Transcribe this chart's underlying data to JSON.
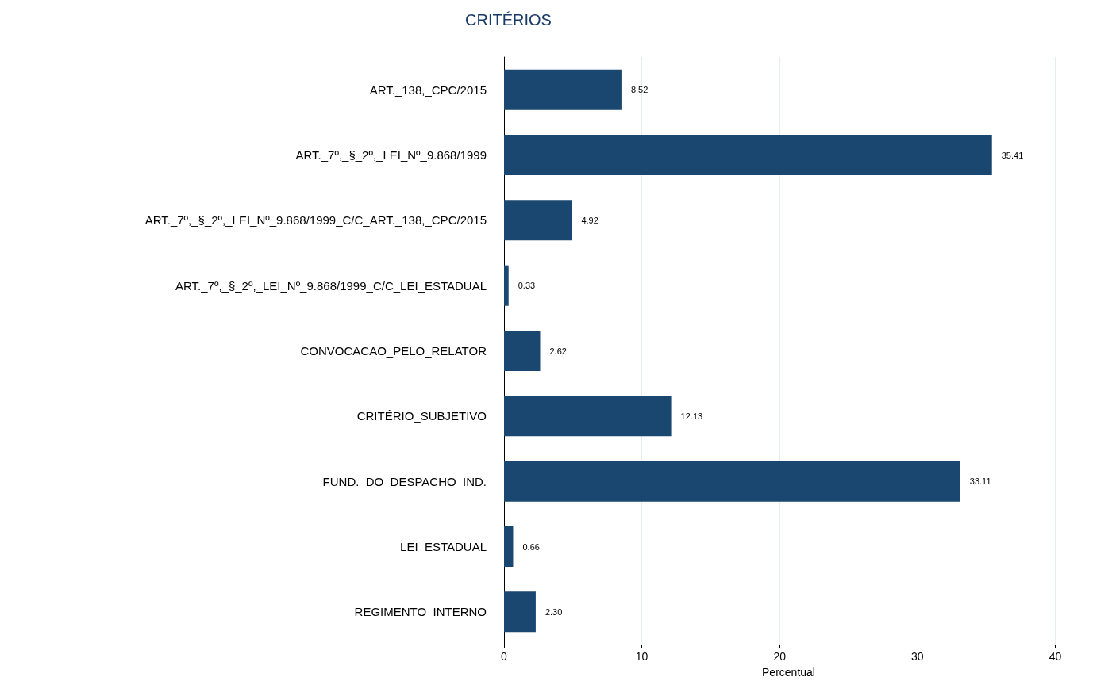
{
  "chart_data": {
    "type": "bar",
    "orientation": "horizontal",
    "title": "CRITÉRIOS",
    "xlabel": "Percentual",
    "categories": [
      "ART._138,_CPC/2015",
      "ART._7º,_§_2º,_LEI_Nº_9.868/1999",
      "ART._7º,_§_2º,_LEI_Nº_9.868/1999_C/C_ART._138,_CPC/2015",
      "ART._7º,_§_2º,_LEI_Nº_9.868/1999_C/C_LEI_ESTADUAL",
      "CONVOCACAO_PELO_RELATOR",
      "CRITÉRIO_SUBJETIVO",
      "FUND._DO_DESPACHO_IND.",
      "LEI_ESTADUAL",
      "REGIMENTO_INTERNO"
    ],
    "values": [
      8.52,
      35.41,
      4.92,
      0.33,
      2.62,
      12.13,
      33.11,
      0.66,
      2.3
    ],
    "value_labels": [
      "8.52",
      "35.41",
      "4.92",
      "0.33",
      "2.62",
      "12.13",
      "33.11",
      "0.66",
      "2.30"
    ],
    "color": "#1a476f",
    "xlim": [
      0,
      41.3
    ],
    "xticks": [
      0,
      10,
      20,
      30,
      40
    ],
    "grid": "x"
  }
}
